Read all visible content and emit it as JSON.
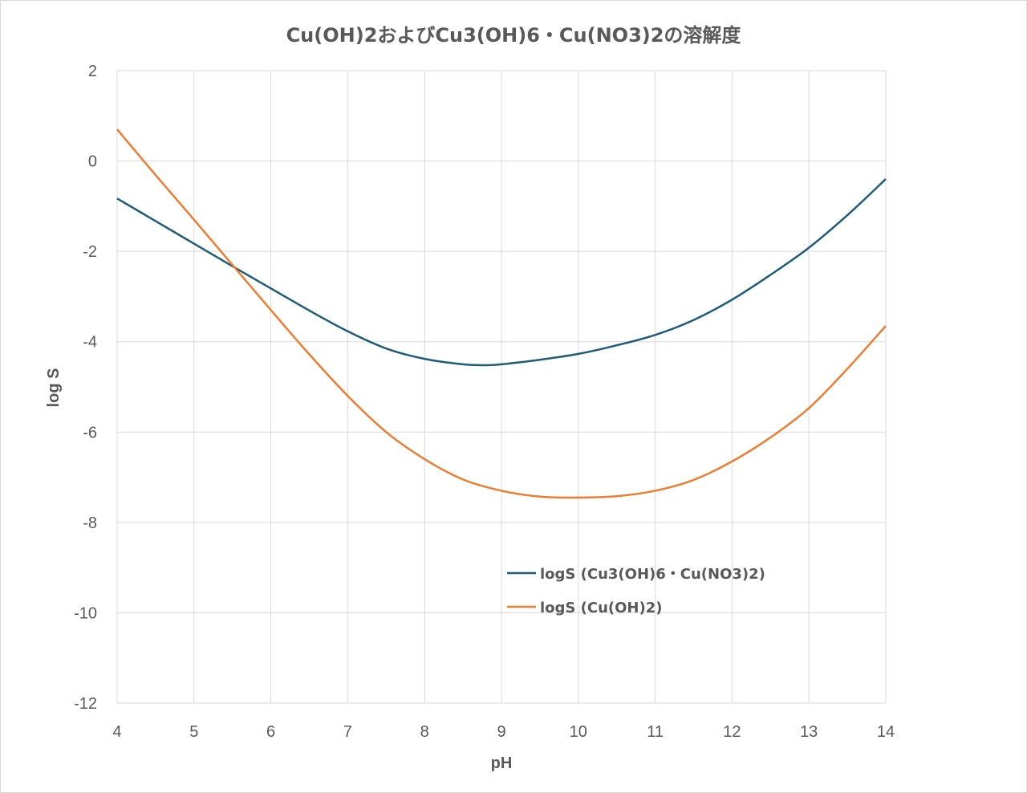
{
  "chart_data": {
    "type": "line",
    "title": "Cu(OH)2およびCu3(OH)6・Cu(NO3)2の溶解度",
    "xlabel": "pH",
    "ylabel": "log S",
    "xlim": [
      4,
      14
    ],
    "ylim": [
      -12,
      2
    ],
    "xticks": [
      4,
      5,
      6,
      7,
      8,
      9,
      10,
      11,
      12,
      13,
      14
    ],
    "yticks": [
      2,
      0,
      -2,
      -4,
      -6,
      -8,
      -10,
      -12
    ],
    "grid": true,
    "legend_position": "lower-middle",
    "series": [
      {
        "name": "logS (Cu3(OH)6・Cu(NO3)2)",
        "color": "#1f5c7a",
        "x": [
          4,
          4.5,
          5,
          5.5,
          6,
          6.5,
          7,
          7.5,
          8,
          8.5,
          8.8,
          9,
          9.5,
          10,
          10.5,
          11,
          11.5,
          12,
          12.5,
          13,
          13.5,
          14
        ],
        "y": [
          -0.83,
          -1.33,
          -1.83,
          -2.33,
          -2.82,
          -3.31,
          -3.77,
          -4.15,
          -4.38,
          -4.5,
          -4.52,
          -4.5,
          -4.4,
          -4.27,
          -4.08,
          -3.85,
          -3.52,
          -3.07,
          -2.52,
          -1.92,
          -1.2,
          -0.4
        ]
      },
      {
        "name": "logS (Cu(OH)2)",
        "color": "#ed7d31",
        "x": [
          4,
          4.5,
          5,
          5.5,
          6,
          6.5,
          7,
          7.5,
          8,
          8.5,
          9,
          9.5,
          10,
          10.5,
          11,
          11.5,
          12,
          12.5,
          13,
          13.5,
          14
        ],
        "y": [
          0.7,
          -0.31,
          -1.3,
          -2.3,
          -3.3,
          -4.28,
          -5.2,
          -6.0,
          -6.6,
          -7.05,
          -7.3,
          -7.43,
          -7.45,
          -7.42,
          -7.3,
          -7.06,
          -6.65,
          -6.12,
          -5.47,
          -4.6,
          -3.65
        ]
      }
    ]
  }
}
